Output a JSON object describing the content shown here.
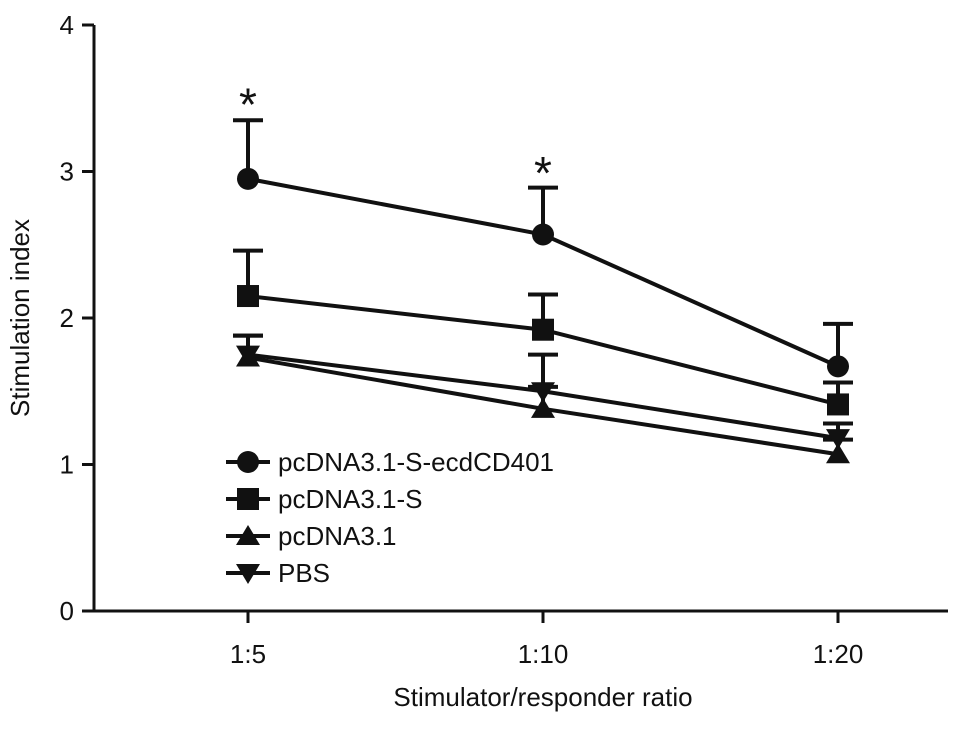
{
  "chart_data": {
    "type": "line",
    "title": "",
    "xlabel": "Stimulator/responder ratio",
    "ylabel": "Stimulation index",
    "categories": [
      "1:5",
      "1:10",
      "1:20"
    ],
    "ylim": [
      0,
      4
    ],
    "yticks": [
      "0",
      "1",
      "2",
      "3",
      "4"
    ],
    "grid": false,
    "legend_position": "bottom-left",
    "series": [
      {
        "name": "pcDNA3.1-S-ecdCD401",
        "marker": "circle",
        "values": [
          2.95,
          2.57,
          1.67
        ],
        "error": [
          0.4,
          0.32,
          0.29
        ]
      },
      {
        "name": "pcDNA3.1-S",
        "marker": "square",
        "values": [
          2.15,
          1.92,
          1.41
        ],
        "error": [
          0.31,
          0.24,
          0.15
        ]
      },
      {
        "name": "pcDNA3.1",
        "marker": "triangle-up",
        "values": [
          1.73,
          1.38,
          1.07
        ],
        "error": [
          0.15,
          0.15,
          0.1
        ]
      },
      {
        "name": "PBS",
        "marker": "triangle-down",
        "values": [
          1.75,
          1.5,
          1.18
        ],
        "error": [
          0.13,
          0.25,
          0.1
        ]
      }
    ],
    "annotations": [
      {
        "text": "*",
        "category": "1:5",
        "value": 3.5
      },
      {
        "text": "*",
        "category": "1:10",
        "value": 3.03
      }
    ],
    "colors": {
      "line": "#111111",
      "background": "#ffffff"
    }
  }
}
